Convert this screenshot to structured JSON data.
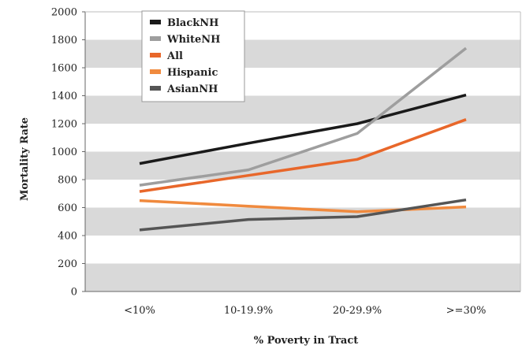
{
  "chart_data": {
    "type": "line",
    "title": "",
    "xlabel": "% Poverty in Tract",
    "ylabel": "Mortality Rate",
    "categories": [
      "<10%",
      "10-19.9%",
      "20-29.9%",
      ">=30%"
    ],
    "ylim": [
      0,
      2000
    ],
    "yticks": [
      0,
      200,
      400,
      600,
      800,
      1000,
      1200,
      1400,
      1600,
      1800,
      2000
    ],
    "grid": "alternating horizontal bands",
    "legend_position": "top-left",
    "series": [
      {
        "name": "BlackNH",
        "color": "#1a1a1a",
        "values": [
          915,
          1060,
          1200,
          1405
        ]
      },
      {
        "name": "WhiteNH",
        "color": "#9e9e9e",
        "values": [
          760,
          870,
          1130,
          1740
        ]
      },
      {
        "name": "All",
        "color": "#e8672a",
        "values": [
          715,
          830,
          945,
          1230
        ]
      },
      {
        "name": "Hispanic",
        "color": "#f08a3e",
        "values": [
          650,
          610,
          570,
          605
        ]
      },
      {
        "name": "AsianNH",
        "color": "#555555",
        "values": [
          440,
          515,
          535,
          655
        ]
      }
    ],
    "colors": {
      "band": "#d9d9d9",
      "background": "#ffffff",
      "axis": "#666666"
    }
  }
}
